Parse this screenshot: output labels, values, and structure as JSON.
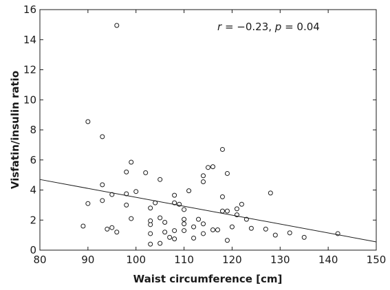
{
  "chart_data": {
    "type": "scatter",
    "title": "",
    "xlabel": "Waist circumference [cm]",
    "ylabel": "Visfatin/insulin ratio",
    "xlim": [
      80,
      150
    ],
    "ylim": [
      0,
      16
    ],
    "xticks": [
      80,
      90,
      100,
      110,
      120,
      130,
      140,
      150
    ],
    "yticks": [
      0,
      2,
      4,
      6,
      8,
      10,
      12,
      14,
      16
    ],
    "grid": false,
    "annotation": {
      "r_symbol": "r",
      "r_value": " = −0.23, ",
      "p_symbol": "p",
      "p_value": " = 0.04"
    },
    "regression_line": {
      "x": [
        80,
        150
      ],
      "y": [
        4.7,
        0.55
      ]
    },
    "points": [
      {
        "x": 89,
        "y": 1.6
      },
      {
        "x": 90,
        "y": 3.1
      },
      {
        "x": 90,
        "y": 8.55
      },
      {
        "x": 93,
        "y": 7.55
      },
      {
        "x": 93,
        "y": 4.35
      },
      {
        "x": 93,
        "y": 3.3
      },
      {
        "x": 94,
        "y": 1.4
      },
      {
        "x": 95,
        "y": 3.7
      },
      {
        "x": 95,
        "y": 1.5
      },
      {
        "x": 96,
        "y": 1.2
      },
      {
        "x": 96,
        "y": 14.95
      },
      {
        "x": 98,
        "y": 5.2
      },
      {
        "x": 98,
        "y": 3.75
      },
      {
        "x": 98,
        "y": 3.0
      },
      {
        "x": 99,
        "y": 5.85
      },
      {
        "x": 99,
        "y": 2.1
      },
      {
        "x": 100,
        "y": 3.9
      },
      {
        "x": 102,
        "y": 5.15
      },
      {
        "x": 103,
        "y": 2.8
      },
      {
        "x": 103,
        "y": 1.95
      },
      {
        "x": 103,
        "y": 1.7
      },
      {
        "x": 103,
        "y": 1.1
      },
      {
        "x": 103,
        "y": 0.4
      },
      {
        "x": 104,
        "y": 3.15
      },
      {
        "x": 105,
        "y": 4.7
      },
      {
        "x": 105,
        "y": 2.15
      },
      {
        "x": 105,
        "y": 0.45
      },
      {
        "x": 106,
        "y": 1.85
      },
      {
        "x": 106,
        "y": 1.2
      },
      {
        "x": 107,
        "y": 0.85
      },
      {
        "x": 108,
        "y": 3.65
      },
      {
        "x": 108,
        "y": 3.15
      },
      {
        "x": 108,
        "y": 1.3
      },
      {
        "x": 108,
        "y": 0.75
      },
      {
        "x": 109,
        "y": 3.05
      },
      {
        "x": 110,
        "y": 2.7
      },
      {
        "x": 110,
        "y": 2.05
      },
      {
        "x": 110,
        "y": 1.75
      },
      {
        "x": 110,
        "y": 1.3
      },
      {
        "x": 111,
        "y": 3.95
      },
      {
        "x": 112,
        "y": 1.55
      },
      {
        "x": 112,
        "y": 0.8
      },
      {
        "x": 113,
        "y": 2.05
      },
      {
        "x": 114,
        "y": 4.95
      },
      {
        "x": 114,
        "y": 4.55
      },
      {
        "x": 114,
        "y": 1.75
      },
      {
        "x": 114,
        "y": 1.1
      },
      {
        "x": 115,
        "y": 5.5
      },
      {
        "x": 116,
        "y": 5.55
      },
      {
        "x": 116,
        "y": 1.35
      },
      {
        "x": 117,
        "y": 1.35
      },
      {
        "x": 118,
        "y": 6.7
      },
      {
        "x": 118,
        "y": 3.55
      },
      {
        "x": 118,
        "y": 2.6
      },
      {
        "x": 119,
        "y": 5.1
      },
      {
        "x": 119,
        "y": 2.6
      },
      {
        "x": 119,
        "y": 0.65
      },
      {
        "x": 120,
        "y": 1.55
      },
      {
        "x": 121,
        "y": 2.75
      },
      {
        "x": 121,
        "y": 2.35
      },
      {
        "x": 122,
        "y": 3.05
      },
      {
        "x": 123,
        "y": 2.05
      },
      {
        "x": 124,
        "y": 1.45
      },
      {
        "x": 127,
        "y": 1.4
      },
      {
        "x": 128,
        "y": 3.8
      },
      {
        "x": 129,
        "y": 1.0
      },
      {
        "x": 132,
        "y": 1.15
      },
      {
        "x": 135,
        "y": 0.85
      },
      {
        "x": 142,
        "y": 1.1
      }
    ]
  }
}
